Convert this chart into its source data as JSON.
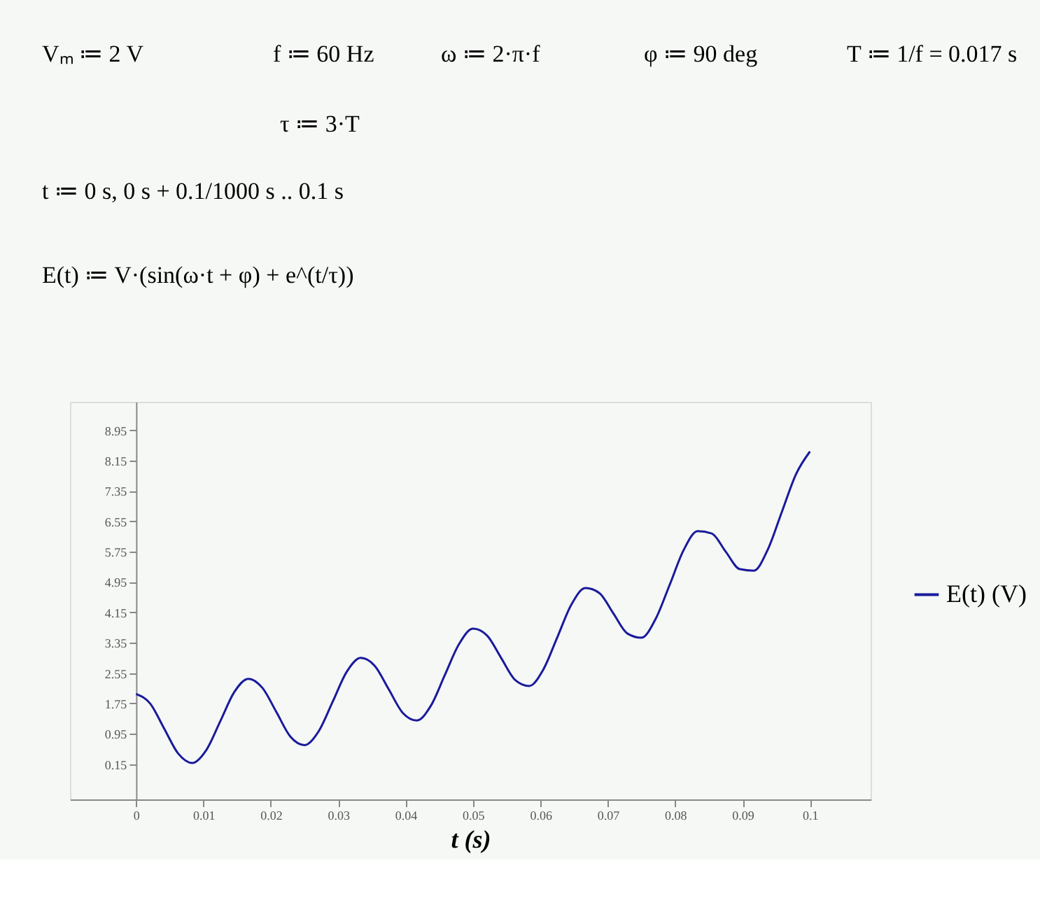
{
  "chart_data": {
    "type": "line",
    "annotations": [
      "Vₘ ≔ 2 V",
      "f ≔ 60 Hz",
      "ω ≔ 2·π·f",
      "φ ≔ 90 deg",
      "T ≔ 1/f = 0.017 s",
      "τ ≔ 3·T",
      "t ≔ 0 s, 0 s + 0.1/1000 s .. 0.1 s",
      "E(t) ≔ V·(sin(ω·t + φ) + e^(t/τ))"
    ],
    "xlabel": "t  (s)",
    "x": [
      0,
      0.00208,
      0.00417,
      0.00625,
      0.00833,
      0.01042,
      0.0125,
      0.01458,
      0.01667,
      0.01875,
      0.02083,
      0.02292,
      0.025,
      0.02708,
      0.02917,
      0.03125,
      0.03333,
      0.03542,
      0.0375,
      0.03958,
      0.04167,
      0.04375,
      0.04583,
      0.04792,
      0.05,
      0.05208,
      0.05417,
      0.05625,
      0.05833,
      0.06042,
      0.0625,
      0.06458,
      0.06667,
      0.06875,
      0.07083,
      0.07292,
      0.075,
      0.07708,
      0.07917,
      0.08125,
      0.08333,
      0.08542,
      0.0875,
      0.08958,
      0.09167,
      0.09375,
      0.09583,
      0.09792,
      0.1
    ],
    "series": [
      {
        "name": "E(t)  (V)",
        "color": "#1a1a9c",
        "values": [
          2.0,
          1.75,
          1.09,
          0.43,
          0.18,
          0.52,
          1.28,
          2.05,
          2.4,
          2.16,
          1.52,
          0.87,
          0.65,
          1.01,
          1.79,
          2.58,
          2.95,
          2.74,
          2.12,
          1.5,
          1.3,
          1.69,
          2.5,
          3.31,
          3.72,
          3.54,
          2.95,
          2.37,
          2.21,
          2.64,
          3.49,
          4.35,
          4.79,
          4.66,
          4.12,
          3.59,
          3.48,
          3.97,
          4.87,
          5.79,
          6.29,
          6.23,
          5.75,
          5.29,
          5.25,
          5.81,
          6.8,
          7.79,
          8.39
        ]
      }
    ],
    "xlim": [
      -0.0098,
      0.109
    ],
    "ylim": [
      -0.78,
      9.7
    ],
    "xticks": [
      0,
      0.01,
      0.02,
      0.03,
      0.04,
      0.05,
      0.06,
      0.07,
      0.08,
      0.09,
      0.1
    ],
    "yticks": [
      0.15,
      0.95,
      1.75,
      2.55,
      3.35,
      4.15,
      4.95,
      5.75,
      6.55,
      7.35,
      8.15,
      8.95
    ],
    "legend": "right",
    "grid": false,
    "marker": "none",
    "line_style": "solid"
  }
}
